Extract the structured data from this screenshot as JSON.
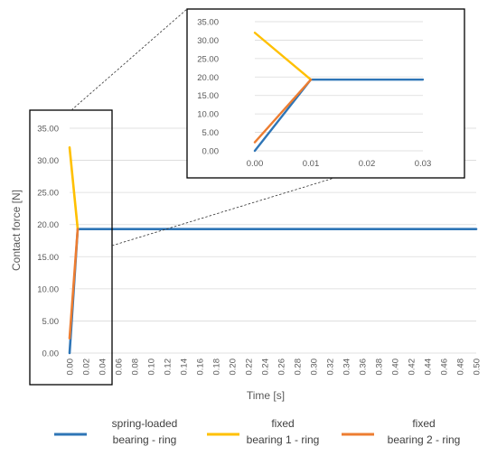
{
  "chart_data": [
    {
      "id": "main",
      "type": "line",
      "xlabel": "Time [s]",
      "ylabel": "Contact force [N]",
      "xlim": [
        0,
        0.5
      ],
      "ylim": [
        0,
        35
      ],
      "grid": true,
      "legend_position": "bottom",
      "x_ticks": [
        "0.00",
        "0.02",
        "0.04",
        "0.06",
        "0.08",
        "0.10",
        "0.12",
        "0.14",
        "0.16",
        "0.18",
        "0.20",
        "0.22",
        "0.24",
        "0.26",
        "0.28",
        "0.30",
        "0.32",
        "0.34",
        "0.36",
        "0.38",
        "0.40",
        "0.42",
        "0.44",
        "0.46",
        "0.48",
        "0.50"
      ],
      "y_ticks": [
        "0.00",
        "5.00",
        "10.00",
        "15.00",
        "20.00",
        "25.00",
        "30.00",
        "35.00"
      ],
      "series": [
        {
          "key": "spring",
          "name": "spring-loaded bearing - ring",
          "color": "#2e75b6",
          "points": [
            [
              0,
              0
            ],
            [
              0.01,
              19.3
            ],
            [
              0.5,
              19.3
            ]
          ]
        },
        {
          "key": "fixed1",
          "name": "fixed bearing 1 - ring",
          "color": "#ffc000",
          "points": [
            [
              0,
              32
            ],
            [
              0.01,
              19.3
            ]
          ]
        },
        {
          "key": "fixed2",
          "name": "fixed bearing 2 - ring",
          "color": "#ed7d31",
          "points": [
            [
              0,
              2.3
            ],
            [
              0.01,
              19.3
            ]
          ]
        }
      ]
    },
    {
      "id": "inset",
      "type": "line",
      "xlim": [
        0,
        0.03
      ],
      "ylim": [
        0,
        35
      ],
      "grid": true,
      "x_ticks": [
        "0.00",
        "0.01",
        "0.02",
        "0.03"
      ],
      "y_ticks": [
        "0.00",
        "5.00",
        "10.00",
        "15.00",
        "20.00",
        "25.00",
        "30.00",
        "35.00"
      ],
      "series": [
        {
          "key": "spring",
          "name": "spring-loaded bearing - ring",
          "color": "#2e75b6",
          "points": [
            [
              0,
              0
            ],
            [
              0.01,
              19.3
            ],
            [
              0.03,
              19.3
            ]
          ]
        },
        {
          "key": "fixed1",
          "name": "fixed bearing 1 - ring",
          "color": "#ffc000",
          "points": [
            [
              0,
              32
            ],
            [
              0.01,
              19.3
            ]
          ]
        },
        {
          "key": "fixed2",
          "name": "fixed bearing 2 - ring",
          "color": "#ed7d31",
          "points": [
            [
              0,
              2.3
            ],
            [
              0.01,
              19.3
            ]
          ]
        }
      ]
    }
  ],
  "legend": [
    {
      "line1": "spring-loaded",
      "line2": "bearing  - ring",
      "color": "#2e75b6"
    },
    {
      "line1": "fixed",
      "line2": "bearing 1  - ring",
      "color": "#ffc000"
    },
    {
      "line1": "fixed",
      "line2": "bearing 2  - ring",
      "color": "#ed7d31"
    }
  ]
}
